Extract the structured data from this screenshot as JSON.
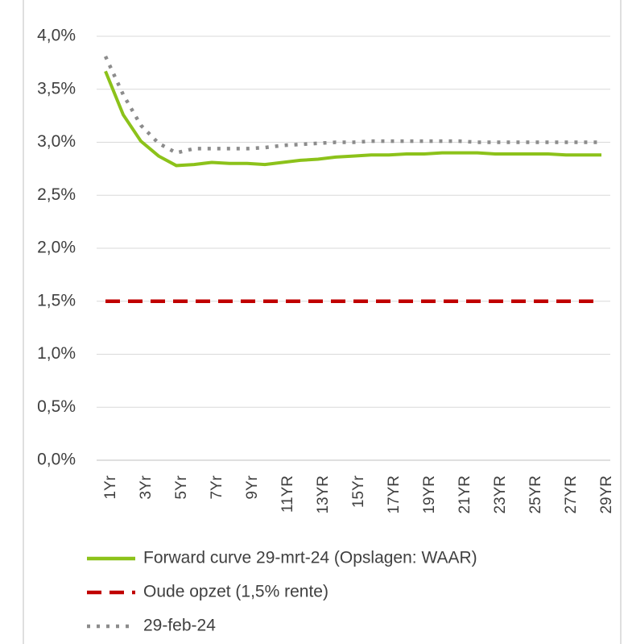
{
  "chart_data": {
    "type": "line",
    "categories": [
      "1Yr",
      null,
      "3Yr",
      null,
      "5Yr",
      null,
      "7Yr",
      null,
      "9Yr",
      null,
      "11YR",
      null,
      "13YR",
      null,
      "15Yr",
      null,
      "17YR",
      null,
      "19YR",
      null,
      "21YR",
      null,
      "23YR",
      null,
      "25YR",
      null,
      "27YR",
      null,
      "29YR"
    ],
    "series": [
      {
        "name": "Forward curve 29-mrt-24 (Opslagen: WAAR)",
        "color": "#8cc21a",
        "dash": "solid",
        "values": [
          3.67,
          3.26,
          3.01,
          2.87,
          2.78,
          2.79,
          2.81,
          2.8,
          2.8,
          2.79,
          2.81,
          2.83,
          2.84,
          2.86,
          2.87,
          2.88,
          2.88,
          2.89,
          2.89,
          2.9,
          2.9,
          2.9,
          2.89,
          2.89,
          2.89,
          2.89,
          2.88,
          2.88,
          2.88
        ]
      },
      {
        "name": "Oude opzet (1,5% rente)",
        "color": "#c00000",
        "dash": "dashed",
        "values": [
          1.5,
          1.5,
          1.5,
          1.5,
          1.5,
          1.5,
          1.5,
          1.5,
          1.5,
          1.5,
          1.5,
          1.5,
          1.5,
          1.5,
          1.5,
          1.5,
          1.5,
          1.5,
          1.5,
          1.5,
          1.5,
          1.5,
          1.5,
          1.5,
          1.5,
          1.5,
          1.5,
          1.5,
          1.5
        ]
      },
      {
        "name": "29-feb-24",
        "color": "#8c8c8c",
        "dash": "dotted",
        "values": [
          3.81,
          3.45,
          3.16,
          2.99,
          2.9,
          2.94,
          2.94,
          2.94,
          2.94,
          2.95,
          2.97,
          2.98,
          2.99,
          3.0,
          3.0,
          3.01,
          3.01,
          3.01,
          3.01,
          3.01,
          3.01,
          3.0,
          3.0,
          3.0,
          3.0,
          3.0,
          3.0,
          3.0,
          3.0
        ]
      }
    ],
    "ylim": [
      0,
      4
    ],
    "yticks": [
      {
        "value": 0,
        "label": "0,0%"
      },
      {
        "value": 0.5,
        "label": "0,5%"
      },
      {
        "value": 1,
        "label": "1,0%"
      },
      {
        "value": 1.5,
        "label": "1,5%"
      },
      {
        "value": 2,
        "label": "2,0%"
      },
      {
        "value": 2.5,
        "label": "2,5%"
      },
      {
        "value": 3,
        "label": "3,0%"
      },
      {
        "value": 3.5,
        "label": "3,5%"
      },
      {
        "value": 4,
        "label": "4,0%"
      }
    ],
    "grid": true,
    "legend": "bottom"
  }
}
